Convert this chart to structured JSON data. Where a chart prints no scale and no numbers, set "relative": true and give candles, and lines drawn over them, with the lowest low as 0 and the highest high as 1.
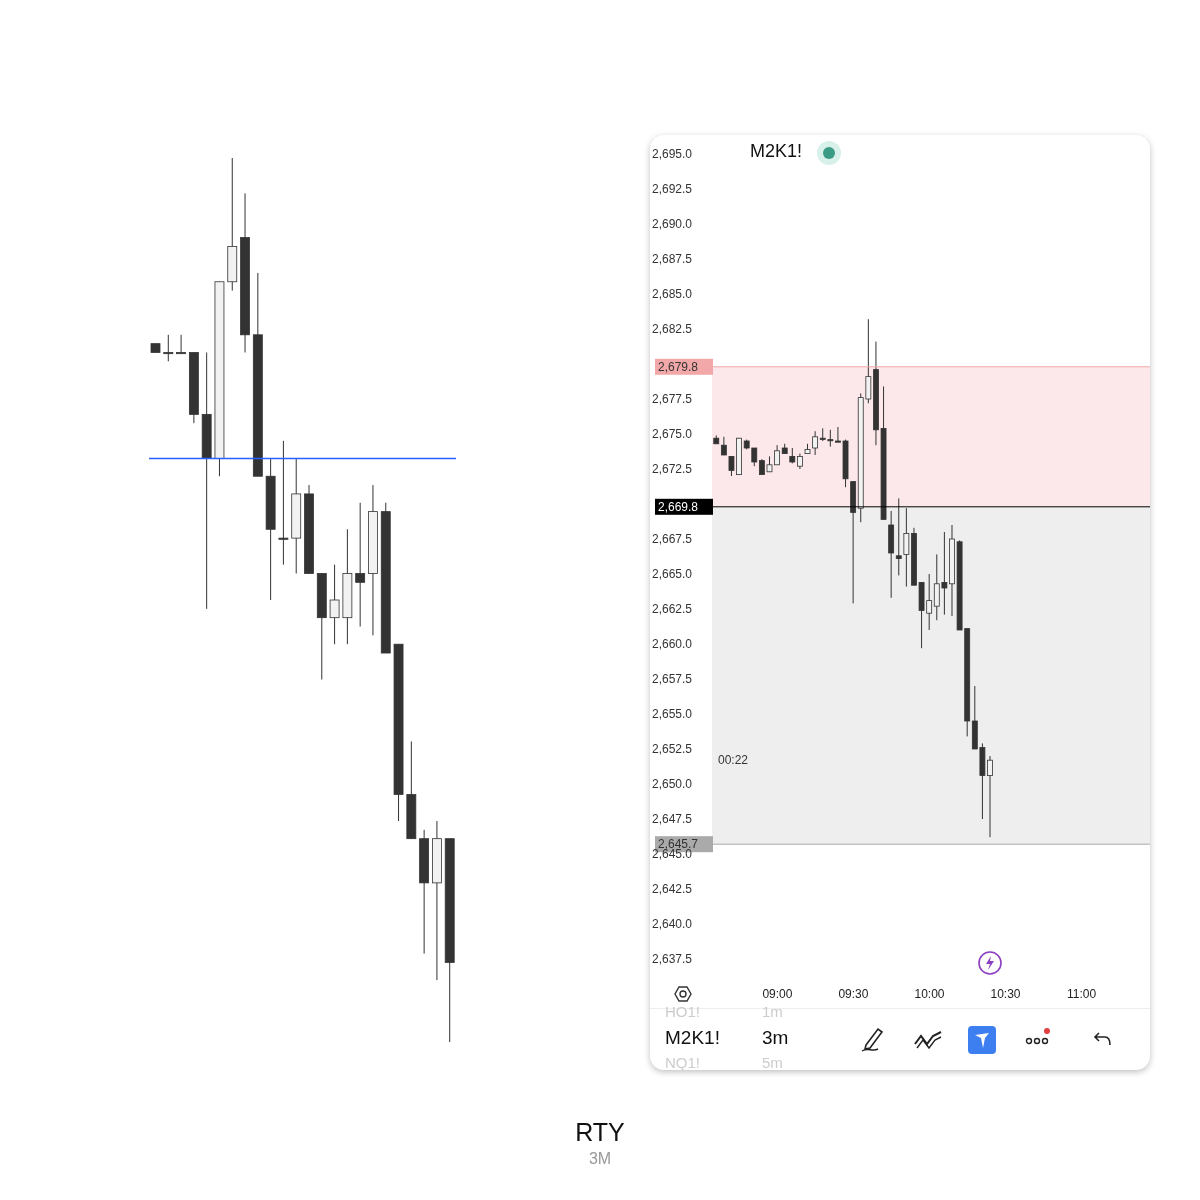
{
  "chart_data": [
    {
      "type": "candlestick",
      "relative": true,
      "categories": [
        null,
        null,
        null,
        null,
        null,
        null,
        null,
        null,
        null,
        null,
        null,
        null,
        null,
        null,
        null,
        null,
        null,
        null,
        null,
        null,
        null,
        null,
        null,
        null
      ],
      "ohlc": [
        [
          0.79,
          0.79,
          0.78,
          0.78
        ],
        [
          0.78,
          0.8,
          0.77,
          0.78
        ],
        [
          0.78,
          0.8,
          0.78,
          0.78
        ],
        [
          0.78,
          0.78,
          0.7,
          0.71
        ],
        [
          0.71,
          0.78,
          0.49,
          0.66
        ],
        [
          0.66,
          0.86,
          0.64,
          0.86
        ],
        [
          0.86,
          1,
          0.85,
          0.9
        ],
        [
          0.91,
          0.96,
          0.78,
          0.8
        ],
        [
          0.8,
          0.87,
          0.64,
          0.64
        ],
        [
          0.64,
          0.66,
          0.5,
          0.58
        ],
        [
          0.57,
          0.68,
          0.54,
          0.57
        ],
        [
          0.57,
          0.66,
          0.53,
          0.62
        ],
        [
          0.62,
          0.63,
          0.53,
          0.53
        ],
        [
          0.53,
          0.53,
          0.41,
          0.48
        ],
        [
          0.48,
          0.54,
          0.45,
          0.5
        ],
        [
          0.48,
          0.58,
          0.45,
          0.53
        ],
        [
          0.53,
          0.61,
          0.47,
          0.52
        ],
        [
          0.53,
          0.63,
          0.46,
          0.6
        ],
        [
          0.6,
          0.61,
          0.44,
          0.44
        ],
        [
          0.45,
          0.45,
          0.25,
          0.28
        ],
        [
          0.28,
          0.34,
          0.23,
          0.23
        ],
        [
          0.23,
          0.24,
          0.1,
          0.18
        ],
        [
          0.18,
          0.25,
          0.07,
          0.23
        ],
        [
          0.23,
          0.23,
          0,
          0.09
        ]
      ],
      "colors": [
        "#333333",
        "#333333",
        "#333333",
        "#333333",
        "#333333",
        "#f2f2f2",
        "#f2f2f2",
        "#333333",
        "#333333",
        "#333333",
        "#333333",
        "#f2f2f2",
        "#333333",
        "#333333",
        "#f2f2f2",
        "#f2f2f2",
        "#333333",
        "#f2f2f2",
        "#333333",
        "#333333",
        "#333333",
        "#333333",
        "#f2f2f2",
        "#333333"
      ],
      "ref_lines": [
        {
          "axis": "y",
          "value": 0.66,
          "color": "#2962ff"
        }
      ]
    },
    {
      "type": "candlestick",
      "title": "M2K1!",
      "x": [
        8.6,
        8.65,
        8.7,
        8.75,
        8.8,
        8.85,
        8.9,
        8.95,
        9,
        9.05,
        9.1,
        9.15,
        9.2,
        9.25,
        9.3,
        9.35,
        9.4,
        9.45,
        9.5,
        9.55,
        9.6,
        9.65,
        9.7,
        9.75,
        9.8,
        9.85,
        9.9,
        9.95,
        10,
        10.05,
        10.1,
        10.15,
        10.2,
        10.25,
        10.3,
        10.35,
        10.4
      ],
      "ohlc": [
        [
          2674.7,
          2674.9,
          2674.3,
          2674.3
        ],
        [
          2674.2,
          2674.8,
          2673.5,
          2673.5
        ],
        [
          2673.4,
          2673.4,
          2672.0,
          2672.4
        ],
        [
          2672.1,
          2674.7,
          2672.1,
          2674.7
        ],
        [
          2674.5,
          2674.6,
          2673.9,
          2674.0
        ],
        [
          2674.0,
          2674.0,
          2672.7,
          2673.0
        ],
        [
          2673.1,
          2673.2,
          2672.1,
          2672.1
        ],
        [
          2672.3,
          2673.4,
          2672.3,
          2672.8
        ],
        [
          2672.8,
          2674.2,
          2672.8,
          2673.8
        ],
        [
          2674.0,
          2674.3,
          2673.6,
          2673.6
        ],
        [
          2673.4,
          2674.0,
          2672.9,
          2673.0
        ],
        [
          2672.7,
          2673.6,
          2672.5,
          2673.4
        ],
        [
          2673.6,
          2674.3,
          2673.6,
          2673.9
        ],
        [
          2674.0,
          2675.2,
          2673.5,
          2674.8
        ],
        [
          2674.7,
          2675.4,
          2674.5,
          2674.7
        ],
        [
          2674.6,
          2675.3,
          2674.1,
          2674.6
        ],
        [
          2674.5,
          2675.5,
          2674.5,
          2674.5
        ],
        [
          2674.5,
          2674.6,
          2671.2,
          2671.8
        ],
        [
          2671.6,
          2671.6,
          2662.9,
          2669.4
        ],
        [
          2669.7,
          2677.9,
          2668.7,
          2677.6
        ],
        [
          2677.5,
          2683.2,
          2677.2,
          2679.1
        ],
        [
          2679.6,
          2681.6,
          2674.2,
          2675.3
        ],
        [
          2675.4,
          2678.4,
          2668.9,
          2668.9
        ],
        [
          2668.5,
          2669.5,
          2663.3,
          2666.5
        ],
        [
          2666.3,
          2670.4,
          2664.9,
          2666.1
        ],
        [
          2666.4,
          2669.7,
          2664.1,
          2667.9
        ],
        [
          2667.9,
          2668.3,
          2664.2,
          2664.2
        ],
        [
          2664.4,
          2664.4,
          2659.7,
          2662.4
        ],
        [
          2662.2,
          2665.0,
          2661.0,
          2663.1
        ],
        [
          2662.7,
          2666.4,
          2661.7,
          2664.3
        ],
        [
          2664.4,
          2668.0,
          2662.1,
          2664.0
        ],
        [
          2664.3,
          2668.5,
          2662.0,
          2667.5
        ],
        [
          2667.3,
          2667.4,
          2661.0,
          2661.0
        ],
        [
          2661.1,
          2661.1,
          2653.4,
          2654.5
        ],
        [
          2654.5,
          2657.0,
          2652.5,
          2652.5
        ],
        [
          2652.6,
          2652.9,
          2647.5,
          2650.6
        ],
        [
          2650.6,
          2652.0,
          2646.2,
          2651.7
        ]
      ],
      "colors": [
        "#333333",
        "#333333",
        "#333333",
        "#f2f2f2",
        "#333333",
        "#333333",
        "#333333",
        "#f2f2f2",
        "#f2f2f2",
        "#333333",
        "#333333",
        "#f2f2f2",
        "#f2f2f2",
        "#f2f2f2",
        "#333333",
        "#333333",
        "#333333",
        "#333333",
        "#333333",
        "#f2f2f2",
        "#f2f2f2",
        "#333333",
        "#333333",
        "#333333",
        "#333333",
        "#f2f2f2",
        "#333333",
        "#333333",
        "#f2f2f2",
        "#f2f2f2",
        "#333333",
        "#f2f2f2",
        "#333333",
        "#333333",
        "#333333",
        "#333333",
        "#f2f2f2"
      ],
      "xlim": [
        8.57,
        11.45
      ],
      "xticks": [
        {
          "value": 9,
          "label": "09:00"
        },
        {
          "value": 9.5,
          "label": "09:30"
        },
        {
          "value": 10,
          "label": "10:00"
        },
        {
          "value": 10.5,
          "label": "10:30"
        },
        {
          "value": 11,
          "label": "11:00"
        }
      ],
      "ylim": [
        2637.5,
        2695
      ],
      "yticks": [
        {
          "value": 2637.5,
          "label": "2,637.5"
        },
        {
          "value": 2640,
          "label": "2,640.0"
        },
        {
          "value": 2642.5,
          "label": "2,642.5"
        },
        {
          "value": 2645,
          "label": "2,645.0"
        },
        {
          "value": 2647.5,
          "label": "2,647.5"
        },
        {
          "value": 2650,
          "label": "2,650.0"
        },
        {
          "value": 2652.5,
          "label": "2,652.5"
        },
        {
          "value": 2655,
          "label": "2,655.0"
        },
        {
          "value": 2657.5,
          "label": "2,657.5"
        },
        {
          "value": 2660,
          "label": "2,660.0"
        },
        {
          "value": 2662.5,
          "label": "2,662.5"
        },
        {
          "value": 2665,
          "label": "2,665.0"
        },
        {
          "value": 2667.5,
          "label": "2,667.5"
        },
        {
          "value": 2672.5,
          "label": "2,672.5"
        },
        {
          "value": 2675,
          "label": "2,675.0"
        },
        {
          "value": 2677.5,
          "label": "2,677.5"
        },
        {
          "value": 2682.5,
          "label": "2,682.5"
        },
        {
          "value": 2685,
          "label": "2,685.0"
        },
        {
          "value": 2687.5,
          "label": "2,687.5"
        },
        {
          "value": 2690,
          "label": "2,690.0"
        },
        {
          "value": 2692.5,
          "label": "2,692.5"
        },
        {
          "value": 2695,
          "label": "2,695.0"
        }
      ],
      "bands": [
        {
          "axis": "y",
          "from": 2669.8,
          "to": 2679.8,
          "color": "#fce8ea"
        },
        {
          "axis": "y",
          "from": 2645.7,
          "to": 2669.8,
          "color": "#eeeeee"
        }
      ],
      "ref_lines": [
        {
          "axis": "y",
          "value": 2679.8,
          "label": "2,679.8",
          "color": "#f2a8a8"
        },
        {
          "axis": "y",
          "value": 2669.8,
          "label": "2,669.8",
          "color": "#000000"
        },
        {
          "axis": "y",
          "value": 2645.7,
          "label": "2,645.7",
          "color": "#aaaaaa"
        }
      ],
      "annotations": [
        "00:22",
        "M2K1!",
        "3m",
        "HO1!",
        "1m",
        "NQ1!",
        "5m",
        "RTY",
        "3M"
      ]
    }
  ]
}
